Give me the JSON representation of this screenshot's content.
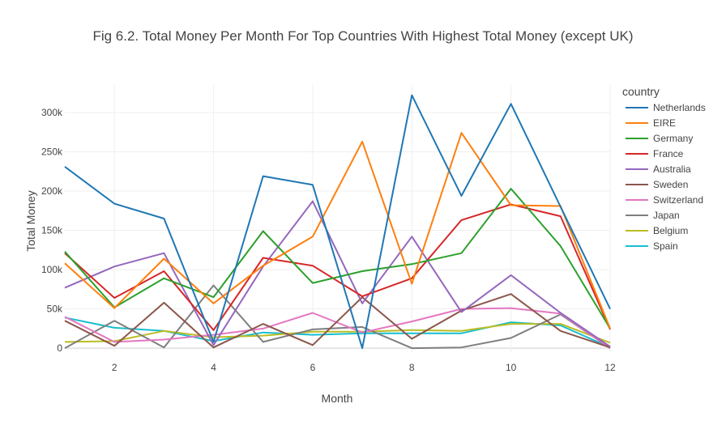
{
  "chart_data": {
    "type": "line",
    "title": "Fig 6.2. Total Money Per Month For Top Countries With Highest Total Money (except UK)",
    "xlabel": "Month",
    "ylabel": "Total Money",
    "legend_title": "country",
    "legend_position": "right",
    "grid": true,
    "xlim": [
      1,
      12
    ],
    "ylim": [
      -5000,
      335000
    ],
    "x_ticks": [
      2,
      4,
      6,
      8,
      10,
      12
    ],
    "x_tick_labels": [
      "2",
      "4",
      "6",
      "8",
      "10",
      "12"
    ],
    "y_ticks": [
      0,
      50000,
      100000,
      150000,
      200000,
      250000,
      300000
    ],
    "y_tick_labels": [
      "0",
      "50k",
      "100k",
      "150k",
      "200k",
      "250k",
      "300k"
    ],
    "x": [
      1,
      2,
      3,
      4,
      5,
      6,
      7,
      8,
      9,
      10,
      11,
      12
    ],
    "series": [
      {
        "name": "Netherlands",
        "color": "#1f77b4",
        "values": [
          231000,
          184000,
          165000,
          8000,
          219000,
          208000,
          0,
          322000,
          194000,
          311000,
          180000,
          50000
        ]
      },
      {
        "name": "EIRE",
        "color": "#ff7f0e",
        "values": [
          108000,
          51000,
          114000,
          57000,
          105000,
          142000,
          263000,
          82000,
          274000,
          182000,
          181000,
          25000
        ]
      },
      {
        "name": "Germany",
        "color": "#2ca02c",
        "values": [
          123000,
          52000,
          89000,
          65000,
          149000,
          83000,
          98000,
          107000,
          121000,
          203000,
          130000,
          25000
        ]
      },
      {
        "name": "France",
        "color": "#d62728",
        "values": [
          121000,
          64000,
          98000,
          23000,
          115000,
          105000,
          66000,
          89000,
          163000,
          183000,
          168000,
          24000
        ]
      },
      {
        "name": "Australia",
        "color": "#9467bd",
        "values": [
          77000,
          104000,
          121000,
          4000,
          104000,
          187000,
          57000,
          142000,
          46000,
          93000,
          45000,
          2000
        ]
      },
      {
        "name": "Sweden",
        "color": "#8c564b",
        "values": [
          35000,
          3000,
          58000,
          1000,
          31000,
          4000,
          65000,
          12000,
          48000,
          69000,
          22000,
          1000
        ]
      },
      {
        "name": "Switzerland",
        "color": "#e377c2",
        "values": [
          40000,
          8000,
          11000,
          17000,
          25000,
          45000,
          20000,
          34000,
          50000,
          51000,
          44000,
          0
        ]
      },
      {
        "name": "Japan",
        "color": "#7f7f7f",
        "values": [
          0,
          35000,
          1000,
          80000,
          8000,
          24000,
          27000,
          0,
          1000,
          13000,
          43000,
          0
        ]
      },
      {
        "name": "Belgium",
        "color": "#bcbd22",
        "values": [
          8000,
          9000,
          22000,
          14000,
          16000,
          21000,
          21000,
          23000,
          22000,
          31000,
          31000,
          7000
        ]
      },
      {
        "name": "Spain",
        "color": "#17becf",
        "values": [
          39000,
          26000,
          22000,
          9000,
          20000,
          17000,
          19000,
          19000,
          19000,
          33000,
          29000,
          1000
        ]
      }
    ]
  }
}
